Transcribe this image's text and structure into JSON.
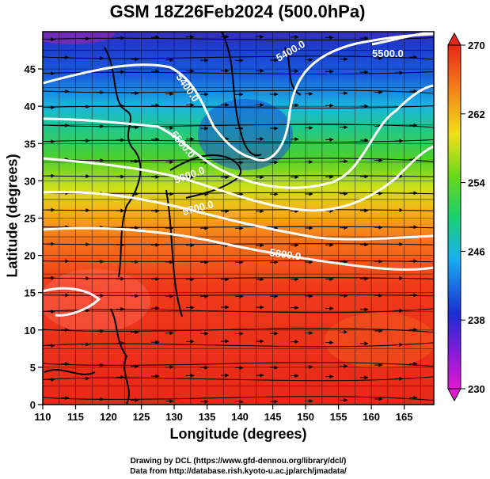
{
  "title": "GSM 18Z26Feb2024 (500.0hPa)",
  "xaxis": {
    "label": "Longitude (degrees)",
    "ticks": [
      "110",
      "115",
      "120",
      "125",
      "130",
      "135",
      "140",
      "145",
      "150",
      "155",
      "160",
      "165"
    ]
  },
  "yaxis": {
    "label": "Latitude  (degrees)",
    "ticks": [
      "0",
      "5",
      "10",
      "15",
      "20",
      "25",
      "30",
      "35",
      "40",
      "45"
    ]
  },
  "colorbar": {
    "ticks": [
      "270",
      "262",
      "254",
      "246",
      "238",
      "230"
    ]
  },
  "contour_labels": [
    "5400.0",
    "5400.0",
    "5500.0",
    "5600.0",
    "5700.0",
    "5800.0",
    "5500.0"
  ],
  "credits": {
    "line1": "Drawing by DCL (https://www.gfd-dennou.org/library/dcl/)",
    "line2": "Data from http://database.rish.kyoto-u.ac.jp/arch/jmadata/"
  },
  "colors": {
    "warm": "#e23a1a",
    "mid": "#2fbf2f",
    "cold": "#1e3fd0",
    "contour": "#ffffff"
  }
}
